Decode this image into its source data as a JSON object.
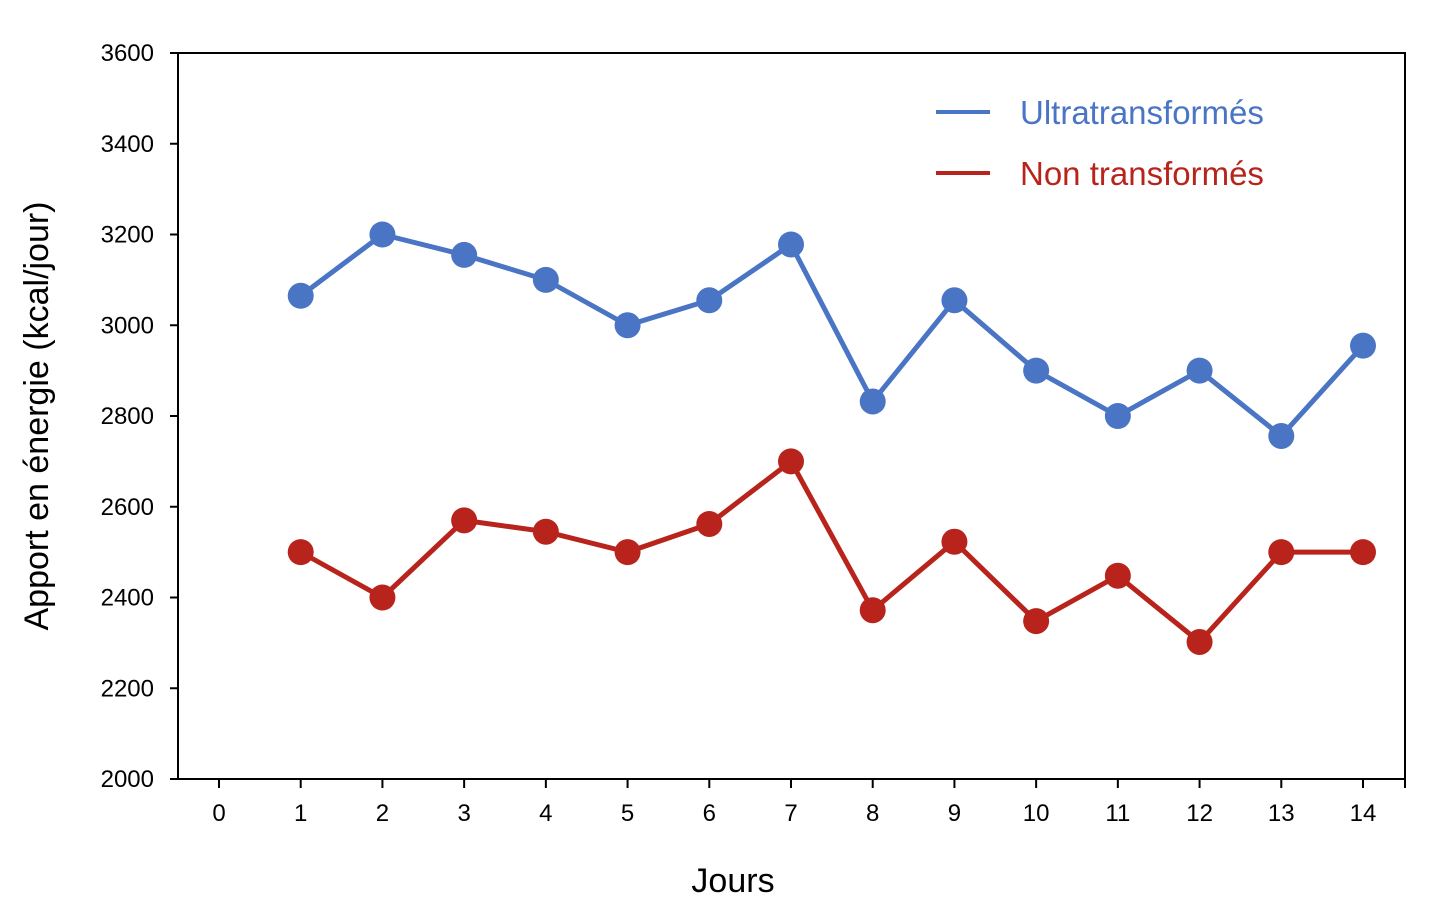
{
  "chart_data": {
    "type": "line",
    "title": "",
    "xlabel": "Jours",
    "ylabel": "Apport en énergie (kcal/jour)",
    "xlim": [
      0,
      14
    ],
    "ylim": [
      2000,
      3600
    ],
    "x_ticks": [
      "0",
      "1",
      "2",
      "3",
      "4",
      "5",
      "6",
      "7",
      "8",
      "9",
      "10",
      "11",
      "12",
      "13",
      "14"
    ],
    "y_ticks": [
      "2000",
      "2200",
      "2400",
      "2600",
      "2800",
      "3000",
      "3200",
      "3400",
      "3600"
    ],
    "grid": false,
    "legend_position": "top-right",
    "x": [
      1,
      2,
      3,
      4,
      5,
      6,
      7,
      8,
      9,
      10,
      11,
      12,
      13,
      14
    ],
    "series": [
      {
        "name": "Ultratransformés",
        "color": "#4A74C4",
        "values": [
          3065,
          3200,
          3155,
          3100,
          3000,
          3055,
          3178,
          2832,
          3055,
          2900,
          2800,
          2900,
          2756,
          2955
        ]
      },
      {
        "name": "Non transformés",
        "color": "#B8241C",
        "values": [
          2500,
          2400,
          2570,
          2545,
          2500,
          2562,
          2700,
          2372,
          2523,
          2348,
          2448,
          2302,
          2500,
          2500
        ]
      }
    ]
  }
}
